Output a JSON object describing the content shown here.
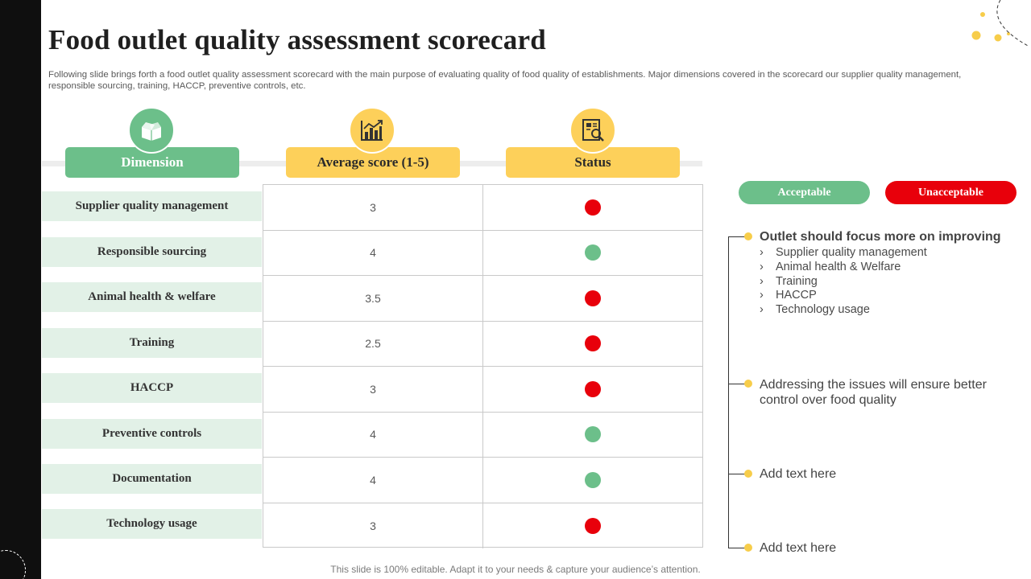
{
  "title": "Food outlet quality assessment scorecard",
  "subtitle": "Following slide brings forth a food outlet quality assessment scorecard with the main purpose of evaluating quality of food quality of establishments. Major dimensions covered in the scorecard our supplier quality management, responsible sourcing, training, HACCP, preventive controls, etc.",
  "headers": {
    "dimension": {
      "label": "Dimension",
      "icon": "box-icon"
    },
    "score": {
      "label": "Average score (1-5)",
      "icon": "bar-chart-icon"
    },
    "status": {
      "label": "Status",
      "icon": "report-icon"
    }
  },
  "colors": {
    "green": "#6cbf8a",
    "yellow": "#fdd05a",
    "red": "#e8000b",
    "status_green": "#6cbf8a"
  },
  "rows": [
    {
      "dimension": "Supplier quality management",
      "score": "3",
      "status": "unacceptable"
    },
    {
      "dimension": "Responsible sourcing",
      "score": "4",
      "status": "acceptable"
    },
    {
      "dimension": "Animal health & welfare",
      "score": "3.5",
      "status": "unacceptable"
    },
    {
      "dimension": "Training",
      "score": "2.5",
      "status": "unacceptable"
    },
    {
      "dimension": "HACCP",
      "score": "3",
      "status": "unacceptable"
    },
    {
      "dimension": "Preventive controls",
      "score": "4",
      "status": "acceptable"
    },
    {
      "dimension": "Documentation",
      "score": "4",
      "status": "acceptable"
    },
    {
      "dimension": "Technology usage",
      "score": "3",
      "status": "unacceptable"
    }
  ],
  "legend": {
    "acceptable": "Acceptable",
    "unacceptable": "Unacceptable"
  },
  "notes": {
    "focus_heading": "Outlet should focus more on improving",
    "focus_items": [
      "Supplier quality management",
      "Animal health & Welfare",
      "Training",
      "HACCP",
      "Technology usage"
    ],
    "note2_line1": "Addressing the issues will ensure better",
    "note2_line2": "control over food quality",
    "note3": "Add text here",
    "note4": "Add text here"
  },
  "footer": "This slide is 100% editable. Adapt it to your needs & capture your audience’s attention."
}
